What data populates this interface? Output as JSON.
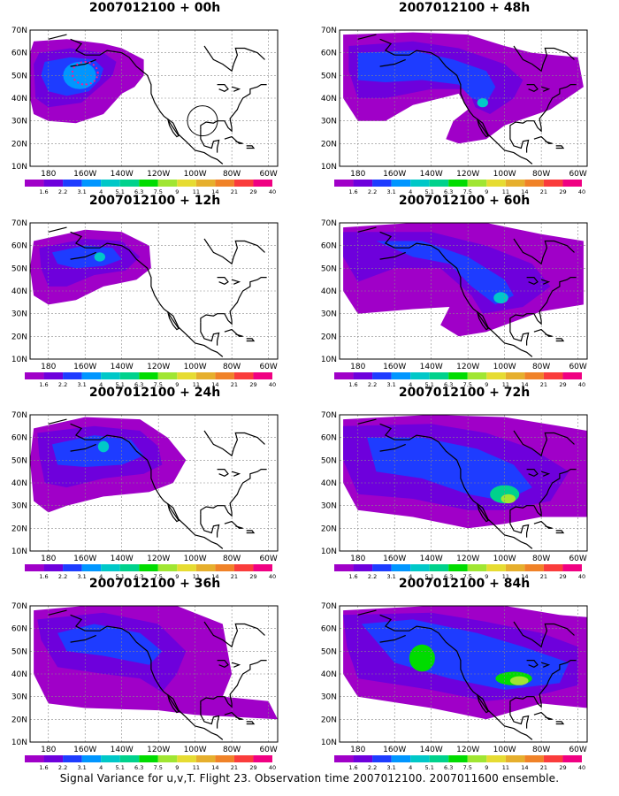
{
  "panels": [
    {
      "title": "2007012100 + 00h"
    },
    {
      "title": "2007012100 + 48h"
    },
    {
      "title": "2007012100 + 12h"
    },
    {
      "title": "2007012100 + 60h"
    },
    {
      "title": "2007012100 + 24h"
    },
    {
      "title": "2007012100 + 72h"
    },
    {
      "title": "2007012100 + 36h"
    },
    {
      "title": "2007012100 + 84h"
    }
  ],
  "axes": {
    "lat_labels": [
      "70N",
      "60N",
      "50N",
      "40N",
      "30N",
      "20N",
      "10N"
    ],
    "lon_labels": [
      "180",
      "160W",
      "140W",
      "120W",
      "100W",
      "80W",
      "60W"
    ]
  },
  "colorbar": {
    "labels": [
      "1.6",
      "2.2",
      "3.1",
      "4",
      "5.1",
      "6.3",
      "7.5",
      "9",
      "11",
      "14",
      "21",
      "29",
      "40"
    ],
    "colors": [
      "#a000c8",
      "#6e00dc",
      "#1e3cff",
      "#0096ff",
      "#00c8c8",
      "#00d28c",
      "#00dc00",
      "#a0e632",
      "#e6dc32",
      "#e6af2d",
      "#f08228",
      "#fa3c3c",
      "#f00082"
    ]
  },
  "footer": "Signal Variance for u,v,T. Flight 23. Observation time 2007012100. 2007011600 ensemble."
}
